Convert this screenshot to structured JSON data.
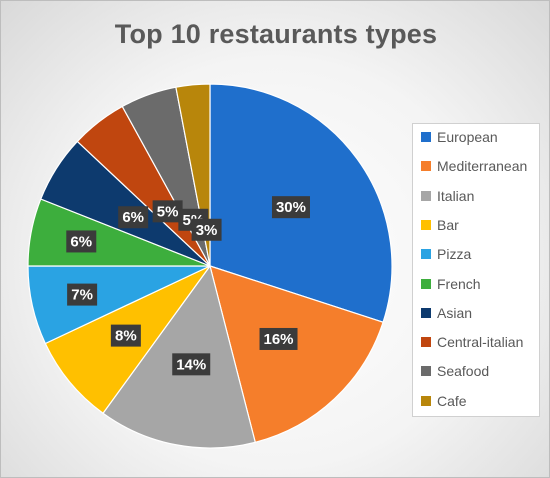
{
  "chart_data": {
    "type": "pie",
    "title": "Top 10 restaurants types",
    "labels": [
      "European",
      "Mediterranean",
      "Italian",
      "Bar",
      "Pizza",
      "French",
      "Asian",
      "Central-italian",
      "Seafood",
      "Cafe"
    ],
    "values": [
      30,
      16,
      14,
      8,
      7,
      6,
      6,
      5,
      5,
      3
    ],
    "data_labels": [
      "30%",
      "16%",
      "14%",
      "8%",
      "7%",
      "6%",
      "6%",
      "5%",
      "5%",
      "3%"
    ],
    "colors": [
      "#1F6FCC",
      "#F57E2B",
      "#A6A6A6",
      "#FFC000",
      "#2AA3E3",
      "#3DAE3D",
      "#0D3A6E",
      "#C0460F",
      "#6B6B6B",
      "#B8860B"
    ],
    "legend_position": "right",
    "start_angle_deg": 0,
    "direction": "clockwise"
  }
}
